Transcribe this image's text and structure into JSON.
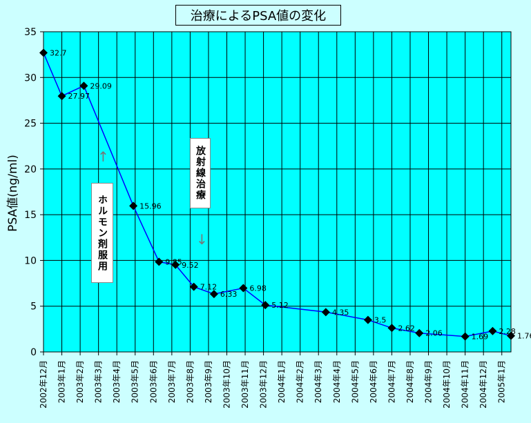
{
  "chart_data": {
    "type": "line",
    "title": "治療によるPSA値の変化",
    "ylabel": "PSA値(ng/ml)",
    "xlabel": "",
    "ylim": [
      0,
      35
    ],
    "yticks": [
      0,
      5,
      10,
      15,
      20,
      25,
      30,
      35
    ],
    "grid": true,
    "legend": "none",
    "colors": {
      "background": "#ccffff",
      "plot": "#00ffff",
      "line": "#0000ff",
      "marker": "#000000",
      "grid": "#000000"
    },
    "categories": [
      "2002年12月",
      "2003年1月",
      "2003年2月",
      "2003年3月",
      "2003年4月",
      "2003年5月",
      "2003年6月",
      "2003年7月",
      "2003年8月",
      "2003年9月",
      "2003年10月",
      "2003年11月",
      "2003年12月",
      "2004年1月",
      "2004年2月",
      "2004年3月",
      "2004年4月",
      "2004年5月",
      "2004年6月",
      "2004年7月",
      "2004年8月",
      "2004年9月",
      "2004年10月",
      "2004年11月",
      "2004年12月",
      "2005年1月"
    ],
    "points": [
      {
        "x": 0.0,
        "y": 32.7,
        "label": "32.7"
      },
      {
        "x": 1.0,
        "y": 27.97,
        "label": "27.97"
      },
      {
        "x": 2.2,
        "y": 29.09,
        "label": "29.09"
      },
      {
        "x": 4.9,
        "y": 15.96,
        "label": "15.96"
      },
      {
        "x": 6.3,
        "y": 9.85,
        "label": "9.85"
      },
      {
        "x": 7.2,
        "y": 9.52,
        "label": "9.52"
      },
      {
        "x": 8.2,
        "y": 7.12,
        "label": "7.12"
      },
      {
        "x": 9.3,
        "y": 6.33,
        "label": "6.33"
      },
      {
        "x": 10.9,
        "y": 6.98,
        "label": "6.98"
      },
      {
        "x": 12.1,
        "y": 5.12,
        "label": "5.12"
      },
      {
        "x": 15.4,
        "y": 4.35,
        "label": "4.35"
      },
      {
        "x": 17.7,
        "y": 3.5,
        "label": "3.5"
      },
      {
        "x": 19.0,
        "y": 2.62,
        "label": "2.62"
      },
      {
        "x": 20.5,
        "y": 2.06,
        "label": "2.06"
      },
      {
        "x": 23.0,
        "y": 1.69,
        "label": "1.69"
      },
      {
        "x": 24.5,
        "y": 2.28,
        "label": "2.28"
      },
      {
        "x": 25.5,
        "y": 1.76,
        "label": "1.76"
      }
    ]
  },
  "annotations": {
    "hormone": "ホルモン剤服用",
    "radiation": "放射線治療",
    "arrow_up": "↑",
    "arrow_down": "↓"
  }
}
